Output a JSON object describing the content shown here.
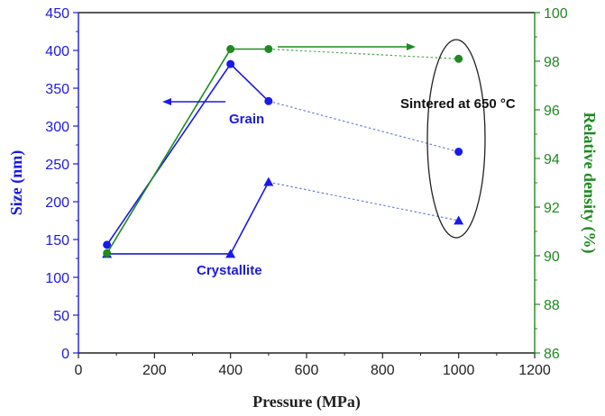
{
  "chart_data": {
    "type": "line",
    "title": "",
    "xlabel": "Pressure (MPa)",
    "ylabel_left": "Size (nm)",
    "ylabel_right": "Relative density (%)",
    "xlim": [
      0,
      1200
    ],
    "ylim_left": [
      0,
      450
    ],
    "ylim_right": [
      86,
      100
    ],
    "x_ticks": [
      0,
      200,
      400,
      600,
      800,
      1000,
      1200
    ],
    "y_left_ticks": [
      0,
      50,
      100,
      150,
      200,
      250,
      300,
      350,
      400,
      450
    ],
    "y_right_ticks": [
      86,
      88,
      90,
      92,
      94,
      96,
      98,
      100
    ],
    "grid": false,
    "series": [
      {
        "name": "Grain",
        "axis": "left",
        "marker": "circle",
        "color": "#1a1ae6",
        "x": [
          75,
          400,
          500
        ],
        "y": [
          143,
          382,
          333
        ],
        "sintered_point": {
          "x": 1000,
          "y": 266
        }
      },
      {
        "name": "Crystallite",
        "axis": "left",
        "marker": "triangle",
        "color": "#1a1ae6",
        "x": [
          75,
          400,
          500
        ],
        "y": [
          131,
          131,
          226
        ],
        "sintered_point": {
          "x": 1000,
          "y": 175
        }
      },
      {
        "name": "",
        "axis": "right",
        "marker": "circle",
        "color": "#1f8a1f",
        "x": [
          75,
          400,
          500
        ],
        "y": [
          90.1,
          98.5,
          98.5
        ],
        "sintered_point": {
          "x": 1000,
          "y": 98.1
        }
      }
    ],
    "annotations": {
      "grain": "Grain",
      "crystallite": "Crystallite",
      "sintered": "Sintered at 650 °C"
    }
  },
  "colors": {
    "blue": "#1a1ae6",
    "green": "#1f8a1f",
    "dashed_blue": "#6a7fe0",
    "dashed_green": "#4faa4f",
    "ellipse": "#222222"
  }
}
